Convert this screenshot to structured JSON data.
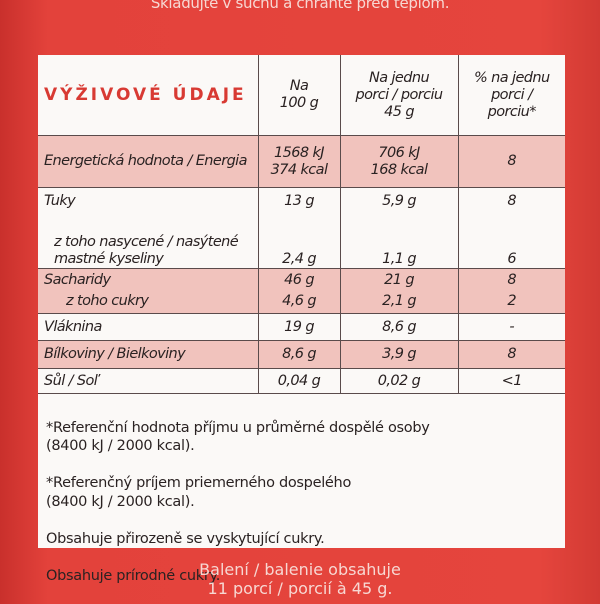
{
  "header": {
    "top_text": "Skladujte v suchu a chraňte před teplom."
  },
  "table": {
    "headers": [
      "VÝŽIVOVÉ ÚDAJE",
      "Na\n100 g",
      "Na jednu\nporci / porciu\n45 g",
      "% na jednu\nporci /\nporciu*"
    ],
    "rows": [
      [
        "Energetická hodnota / Energia",
        "1568 kJ\n374 kcal",
        "706 kJ\n168 kcal",
        "8"
      ],
      [
        "Tuky",
        "13 g",
        "5,9 g",
        "8"
      ],
      [
        "z toho nasycené / nasýtené\nmastné kyseliny",
        "2,4 g",
        "1,1 g",
        "6"
      ],
      [
        "Sacharidy",
        "46 g",
        "21 g",
        "8"
      ],
      [
        "z toho cukry",
        "4,6 g",
        "2,1 g",
        "2"
      ],
      [
        "Vláknina",
        "19 g",
        "8,6 g",
        "-"
      ],
      [
        "Bílkoviny / Bielkoviny",
        "8,6 g",
        "3,9 g",
        "8"
      ],
      [
        "Sůl / Soľ",
        "0,04 g",
        "0,02 g",
        "<1"
      ]
    ]
  },
  "footnotes": [
    "*Referenční hodnota příjmu u průměrné dospělé osoby\n(8400 kJ / 2000 kcal).",
    "*Referenčný príjem priemerného dospelého\n(8400 kJ / 2000 kcal).",
    "Obsahuje přirozeně se vyskytující cukry.",
    "Obsahuje prírodné cukry."
  ],
  "footer": {
    "bottom_text": "Balení / balenie obsahuje\n11 porcí / porcií à 45 g."
  }
}
